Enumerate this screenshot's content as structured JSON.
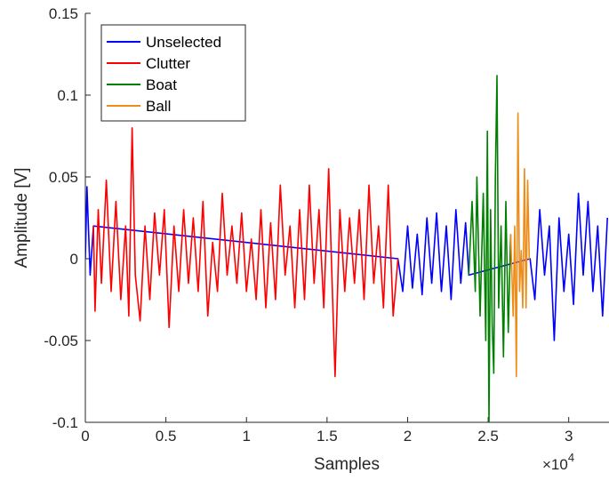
{
  "chart_data": {
    "type": "line",
    "xlabel": "Samples",
    "ylabel": "Amplitude [V]",
    "x_exponent_label": "×10",
    "x_exponent_power": "4",
    "xlim": [
      0,
      32500
    ],
    "ylim": [
      -0.1,
      0.15
    ],
    "x_ticks": [
      0,
      5000,
      10000,
      15000,
      20000,
      25000,
      30000
    ],
    "x_tick_labels": [
      "0",
      "0.5",
      "1",
      "1.5",
      "2",
      "2.5",
      "3"
    ],
    "y_ticks": [
      -0.1,
      -0.05,
      0,
      0.05,
      0.1,
      0.15
    ],
    "y_tick_labels": [
      "-0.1",
      "-0.05",
      "0",
      "0.05",
      "0.1",
      "0.15"
    ],
    "grid": false,
    "legend_position": "top-left",
    "series": [
      {
        "name": "Unselected",
        "color": "#0000ff",
        "points": [
          [
            0,
            0.0
          ],
          [
            100,
            0.044
          ],
          [
            300,
            -0.01
          ],
          [
            500,
            0.02
          ],
          [
            19400,
            0.0
          ],
          [
            19700,
            -0.02
          ],
          [
            20000,
            0.02
          ],
          [
            20300,
            -0.018
          ],
          [
            20600,
            0.015
          ],
          [
            20900,
            -0.022
          ],
          [
            21200,
            0.025
          ],
          [
            21500,
            -0.015
          ],
          [
            21800,
            0.028
          ],
          [
            22100,
            -0.02
          ],
          [
            22400,
            0.02
          ],
          [
            22700,
            -0.025
          ],
          [
            23000,
            0.03
          ],
          [
            23300,
            -0.015
          ],
          [
            23600,
            0.022
          ],
          [
            23800,
            -0.01
          ],
          [
            27600,
            0.0
          ],
          [
            27900,
            -0.025
          ],
          [
            28200,
            0.03
          ],
          [
            28500,
            -0.01
          ],
          [
            28800,
            0.02
          ],
          [
            29100,
            -0.05
          ],
          [
            29400,
            0.025
          ],
          [
            29700,
            -0.02
          ],
          [
            30000,
            0.015
          ],
          [
            30300,
            -0.028
          ],
          [
            30600,
            0.04
          ],
          [
            30900,
            -0.01
          ],
          [
            31200,
            0.035
          ],
          [
            31500,
            -0.02
          ],
          [
            31800,
            0.02
          ],
          [
            32100,
            -0.035
          ],
          [
            32400,
            0.025
          ]
        ]
      },
      {
        "name": "Clutter",
        "color": "#ff0000",
        "points": [
          [
            500,
            0.02
          ],
          [
            600,
            -0.032
          ],
          [
            800,
            0.03
          ],
          [
            1000,
            -0.015
          ],
          [
            1300,
            0.048
          ],
          [
            1600,
            -0.02
          ],
          [
            1900,
            0.035
          ],
          [
            2200,
            -0.025
          ],
          [
            2500,
            0.02
          ],
          [
            2700,
            -0.035
          ],
          [
            2900,
            0.08
          ],
          [
            3100,
            -0.01
          ],
          [
            3400,
            -0.038
          ],
          [
            3700,
            0.02
          ],
          [
            4000,
            -0.025
          ],
          [
            4300,
            0.028
          ],
          [
            4600,
            -0.01
          ],
          [
            4900,
            0.03
          ],
          [
            5200,
            -0.042
          ],
          [
            5500,
            0.02
          ],
          [
            5800,
            -0.02
          ],
          [
            6100,
            0.03
          ],
          [
            6400,
            -0.015
          ],
          [
            6700,
            0.025
          ],
          [
            7000,
            -0.02
          ],
          [
            7300,
            0.035
          ],
          [
            7600,
            -0.035
          ],
          [
            7900,
            0.01
          ],
          [
            8200,
            -0.02
          ],
          [
            8500,
            0.04
          ],
          [
            8800,
            -0.01
          ],
          [
            9100,
            0.02
          ],
          [
            9400,
            -0.015
          ],
          [
            9700,
            0.028
          ],
          [
            10000,
            -0.02
          ],
          [
            10300,
            0.012
          ],
          [
            10600,
            -0.025
          ],
          [
            10900,
            0.03
          ],
          [
            11200,
            -0.03
          ],
          [
            11500,
            0.022
          ],
          [
            11800,
            -0.025
          ],
          [
            12100,
            0.045
          ],
          [
            12400,
            -0.01
          ],
          [
            12700,
            0.02
          ],
          [
            13000,
            -0.03
          ],
          [
            13300,
            0.03
          ],
          [
            13600,
            -0.025
          ],
          [
            13900,
            0.045
          ],
          [
            14200,
            -0.015
          ],
          [
            14500,
            0.03
          ],
          [
            14800,
            -0.03
          ],
          [
            15100,
            0.055
          ],
          [
            15300,
            -0.01
          ],
          [
            15500,
            -0.072
          ],
          [
            15800,
            0.03
          ],
          [
            16100,
            -0.02
          ],
          [
            16400,
            0.025
          ],
          [
            16700,
            -0.015
          ],
          [
            17000,
            0.03
          ],
          [
            17300,
            -0.025
          ],
          [
            17600,
            0.045
          ],
          [
            17900,
            -0.015
          ],
          [
            18200,
            0.02
          ],
          [
            18500,
            -0.03
          ],
          [
            18800,
            0.045
          ],
          [
            19100,
            -0.035
          ],
          [
            19400,
            0.0
          ]
        ]
      },
      {
        "name": "Boat",
        "color": "#008000",
        "points": [
          [
            23800,
            -0.01
          ],
          [
            24000,
            0.035
          ],
          [
            24200,
            -0.02
          ],
          [
            24300,
            0.05
          ],
          [
            24500,
            -0.035
          ],
          [
            24700,
            0.04
          ],
          [
            24850,
            -0.05
          ],
          [
            24950,
            0.078
          ],
          [
            25050,
            -0.1
          ],
          [
            25150,
            0.03
          ],
          [
            25250,
            -0.04
          ],
          [
            25350,
            -0.07
          ],
          [
            25450,
            0.05
          ],
          [
            25550,
            0.112
          ],
          [
            25650,
            -0.03
          ],
          [
            25800,
            0.02
          ],
          [
            25950,
            -0.06
          ],
          [
            26100,
            0.035
          ],
          [
            26250,
            -0.045
          ],
          [
            26400,
            0.015
          ]
        ]
      },
      {
        "name": "Ball",
        "color": "#ed8c18",
        "points": [
          [
            26400,
            0.015
          ],
          [
            26550,
            -0.035
          ],
          [
            26650,
            0.02
          ],
          [
            26750,
            -0.072
          ],
          [
            26850,
            0.089
          ],
          [
            26950,
            -0.02
          ],
          [
            27050,
            0.005
          ],
          [
            27150,
            -0.03
          ],
          [
            27250,
            0.055
          ],
          [
            27350,
            -0.03
          ],
          [
            27450,
            0.048
          ],
          [
            27550,
            0.0
          ],
          [
            27600,
            0.0
          ]
        ]
      }
    ]
  }
}
